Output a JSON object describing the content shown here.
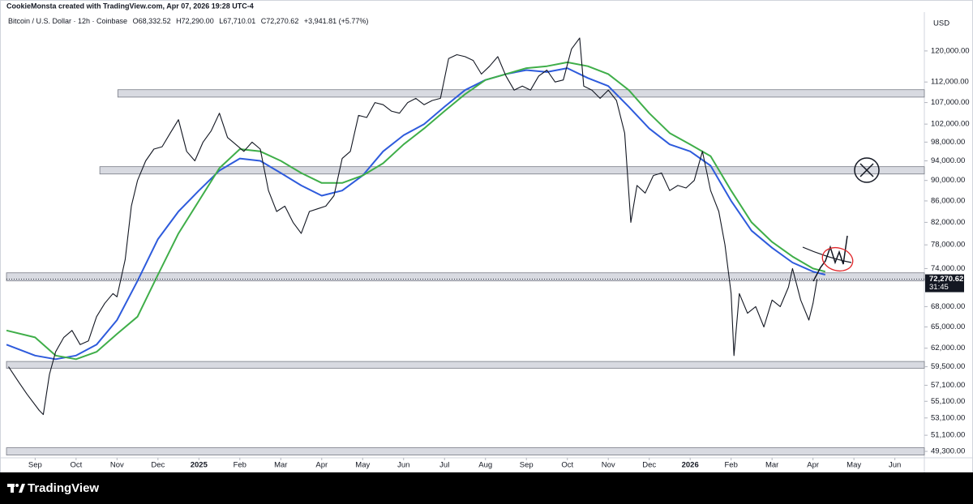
{
  "header": "CookieMonsta created with TradingView.com, Apr 07, 2026 19:28 UTC-4",
  "legend": {
    "symbol": "Bitcoin / U.S. Dollar · 12h · Coinbase",
    "open": "O68,332.52",
    "high": "H72,290.00",
    "low": "L67,710.01",
    "close": "C72,270.62",
    "change": "+3,941.81 (+5.77%)"
  },
  "footer": {
    "brand": "TradingView"
  },
  "chart_data": {
    "type": "line",
    "log_scale": true,
    "currency": "USD",
    "xlim": [
      -0.7,
      21.72
    ],
    "ylim": [
      48600,
      130800
    ],
    "xticks": [
      {
        "value": 0,
        "label": "Sep"
      },
      {
        "value": 1,
        "label": "Oct"
      },
      {
        "value": 2,
        "label": "Nov"
      },
      {
        "value": 3,
        "label": "Dec"
      },
      {
        "value": 4,
        "label": "2025"
      },
      {
        "value": 5,
        "label": "Feb"
      },
      {
        "value": 6,
        "label": "Mar"
      },
      {
        "value": 7,
        "label": "Apr"
      },
      {
        "value": 8,
        "label": "May"
      },
      {
        "value": 9,
        "label": "Jun"
      },
      {
        "value": 10,
        "label": "Jul"
      },
      {
        "value": 11,
        "label": "Aug"
      },
      {
        "value": 12,
        "label": "Sep"
      },
      {
        "value": 13,
        "label": "Oct"
      },
      {
        "value": 14,
        "label": "Nov"
      },
      {
        "value": 15,
        "label": "Dec"
      },
      {
        "value": 16,
        "label": "2026"
      },
      {
        "value": 17,
        "label": "Feb"
      },
      {
        "value": 18,
        "label": "Mar"
      },
      {
        "value": 19,
        "label": "Apr"
      },
      {
        "value": 20,
        "label": "May"
      },
      {
        "value": 21,
        "label": "Jun"
      }
    ],
    "yticks": [
      {
        "value": 120000,
        "label": "120,000.00"
      },
      {
        "value": 112000,
        "label": "112,000.00"
      },
      {
        "value": 107000,
        "label": "107,000.00"
      },
      {
        "value": 102000,
        "label": "102,000.00"
      },
      {
        "value": 98000,
        "label": "98,000.00"
      },
      {
        "value": 94000,
        "label": "94,000.00"
      },
      {
        "value": 90000,
        "label": "90,000.00"
      },
      {
        "value": 86000,
        "label": "86,000.00"
      },
      {
        "value": 82000,
        "label": "82,000.00"
      },
      {
        "value": 78000,
        "label": "78,000.00"
      },
      {
        "value": 74000,
        "label": "74,000.00"
      },
      {
        "value": 68000,
        "label": "68,000.00"
      },
      {
        "value": 65000,
        "label": "65,000.00"
      },
      {
        "value": 62000,
        "label": "62,000.00"
      },
      {
        "value": 59500,
        "label": "59,500.00"
      },
      {
        "value": 57100,
        "label": "57,100.00"
      },
      {
        "value": 55100,
        "label": "55,100.00"
      },
      {
        "value": 53100,
        "label": "53,100.00"
      },
      {
        "value": 51100,
        "label": "51,100.00"
      },
      {
        "value": 49300,
        "label": "49,300.00"
      }
    ],
    "price_label": {
      "value": 72270.62,
      "label": "72,270.62",
      "countdown": "31:45"
    },
    "zones": [
      {
        "start": 2.02,
        "low": 108300,
        "high": 110100
      },
      {
        "start": 1.58,
        "low": 91300,
        "high": 92800
      },
      {
        "start": -0.7,
        "low": 72000,
        "high": 73300
      },
      {
        "start": -0.7,
        "low": 59300,
        "high": 60200
      },
      {
        "start": -0.7,
        "low": 48900,
        "high": 49700
      }
    ],
    "series": [
      {
        "color": "#131722",
        "x": [
          -0.65,
          -0.4,
          -0.2,
          0.1,
          0.2,
          0.35,
          0.5,
          0.7,
          0.9,
          1.1,
          1.3,
          1.5,
          1.7,
          1.9,
          2.0,
          2.2,
          2.35,
          2.5,
          2.7,
          2.9,
          3.1,
          3.3,
          3.5,
          3.7,
          3.9,
          4.1,
          4.3,
          4.5,
          4.7,
          4.9,
          5.1,
          5.3,
          5.5,
          5.7,
          5.9,
          6.1,
          6.3,
          6.5,
          6.7,
          6.9,
          7.1,
          7.3,
          7.5,
          7.7,
          7.9,
          8.1,
          8.3,
          8.5,
          8.7,
          8.9,
          9.1,
          9.3,
          9.5,
          9.7,
          9.9,
          10.1,
          10.3,
          10.5,
          10.7,
          10.9,
          11.1,
          11.3,
          11.5,
          11.7,
          11.9,
          12.1,
          12.3,
          12.5,
          12.7,
          12.9,
          13.1,
          13.3,
          13.4,
          13.6,
          13.8,
          14.0,
          14.2,
          14.4,
          14.55,
          14.7,
          14.9,
          15.1,
          15.3,
          15.5,
          15.7,
          15.9,
          16.1,
          16.3,
          16.5,
          16.7,
          16.85,
          17.0,
          17.07,
          17.2,
          17.4,
          17.6,
          17.8,
          18.0,
          18.2,
          18.4,
          18.5,
          18.7,
          18.9,
          19.0,
          19.1
        ],
        "values": [
          59500,
          57500,
          56000,
          54000,
          53500,
          58500,
          61500,
          63500,
          64500,
          62500,
          63000,
          66500,
          68500,
          70000,
          69500,
          75500,
          85000,
          90000,
          94000,
          96500,
          97000,
          100000,
          103000,
          96000,
          94000,
          98000,
          100500,
          104500,
          99000,
          97500,
          96000,
          98000,
          96500,
          88000,
          84000,
          85000,
          82000,
          80000,
          84000,
          84500,
          85000,
          87000,
          94500,
          96000,
          104000,
          103500,
          107000,
          106500,
          105000,
          104500,
          107000,
          108000,
          106500,
          107500,
          108000,
          118000,
          119000,
          118500,
          117500,
          114000,
          116000,
          118500,
          113500,
          110000,
          111000,
          110000,
          113500,
          115000,
          112000,
          112500,
          120500,
          123500,
          111000,
          110000,
          108000,
          110000,
          107500,
          100000,
          82000,
          89000,
          87500,
          91000,
          91500,
          88000,
          89000,
          88500,
          90000,
          96000,
          88000,
          84000,
          78000,
          70000,
          61000,
          70000,
          67000,
          68000,
          65000,
          69000,
          68000,
          71000,
          74000,
          69000,
          66000,
          68500,
          72270.62
        ]
      },
      {
        "color": "#2e5bdc",
        "x": [
          -0.7,
          0,
          0.5,
          1,
          1.5,
          2,
          2.5,
          3,
          3.5,
          4,
          4.5,
          5,
          5.5,
          6,
          6.5,
          7,
          7.5,
          8,
          8.5,
          9,
          9.5,
          10,
          10.5,
          11,
          11.5,
          12,
          12.5,
          13,
          13.5,
          14,
          14.5,
          15,
          15.5,
          16,
          16.5,
          17,
          17.5,
          18,
          18.5,
          19,
          19.3
        ],
        "values": [
          62500,
          61000,
          60500,
          61000,
          62500,
          66000,
          72000,
          79000,
          84000,
          88000,
          92000,
          94500,
          94000,
          91500,
          89000,
          87000,
          88000,
          91000,
          96000,
          99500,
          102000,
          106000,
          110000,
          112500,
          114000,
          115000,
          114500,
          115500,
          113000,
          111000,
          106000,
          101000,
          97500,
          96000,
          93000,
          86000,
          80500,
          77500,
          75000,
          73500,
          73000
        ]
      },
      {
        "color": "#3fae49",
        "x": [
          -0.7,
          0,
          0.5,
          1,
          1.5,
          2,
          2.5,
          3,
          3.5,
          4,
          4.5,
          5,
          5.5,
          6,
          6.5,
          7,
          7.5,
          8,
          8.5,
          9,
          9.5,
          10,
          10.5,
          11,
          11.5,
          12,
          12.5,
          13,
          13.5,
          14,
          14.5,
          15,
          15.5,
          16,
          16.5,
          17,
          17.5,
          18,
          18.5,
          19,
          19.3
        ],
        "values": [
          64500,
          63500,
          61000,
          60500,
          61500,
          64000,
          66500,
          73000,
          80000,
          86000,
          92500,
          96500,
          96000,
          94000,
          91500,
          89500,
          89500,
          91000,
          93500,
          97500,
          101000,
          105000,
          109000,
          112500,
          114000,
          115500,
          116000,
          117000,
          116000,
          114000,
          110000,
          104500,
          100000,
          97500,
          95000,
          88000,
          82000,
          78500,
          76000,
          74000,
          73500
        ]
      }
    ]
  }
}
